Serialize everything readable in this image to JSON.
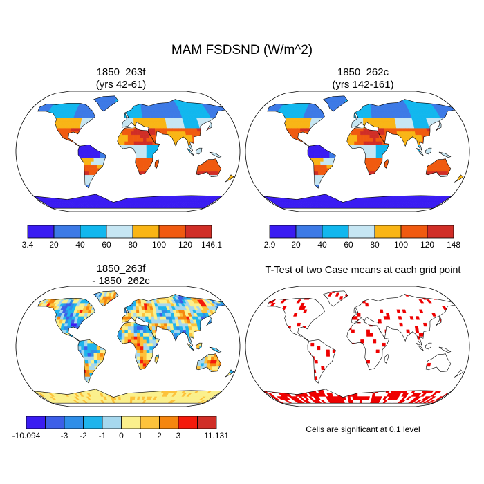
{
  "title": "MAM FSDSND (W/m^2)",
  "panels": {
    "p1": {
      "title_line1": "1850_263f",
      "title_line2": "(yrs 42-61)"
    },
    "p2": {
      "title_line1": "1850_262c",
      "title_line2": "(yrs 142-161)"
    },
    "p3": {
      "title_line1": "1850_263f",
      "title_line2": "- 1850_262c"
    },
    "p4": {
      "title": "T-Test of two Case means at each grid point",
      "note": "Cells are significant at 0.1 level"
    }
  },
  "chart_data": [
    {
      "type": "heatmap",
      "name": "case-a-map",
      "title": "1850_263f (yrs 42-61)",
      "projection": "Robinson",
      "colorbar": {
        "labels": [
          "3.4",
          "20",
          "40",
          "60",
          "80",
          "100",
          "120",
          "146.1"
        ],
        "bounds": [
          3.4,
          20,
          40,
          60,
          80,
          100,
          120,
          146.1
        ],
        "colors": [
          "#3a1cf2",
          "#3d7ae6",
          "#12b7ee",
          "#c6e6f3",
          "#f9b516",
          "#f05a10",
          "#d02e27"
        ]
      }
    },
    {
      "type": "heatmap",
      "name": "case-b-map",
      "title": "1850_262c (yrs 142-161)",
      "projection": "Robinson",
      "colorbar": {
        "labels": [
          "2.9",
          "20",
          "40",
          "60",
          "80",
          "100",
          "120",
          "148"
        ],
        "bounds": [
          2.9,
          20,
          40,
          60,
          80,
          100,
          120,
          148
        ],
        "colors": [
          "#3a1cf2",
          "#3d7ae6",
          "#12b7ee",
          "#c6e6f3",
          "#f9b516",
          "#f05a10",
          "#d02e27"
        ]
      }
    },
    {
      "type": "heatmap",
      "name": "difference-map",
      "title": "1850_263f - 1850_262c",
      "projection": "Robinson",
      "colorbar": {
        "labels": [
          "-10.094",
          "-3",
          "-2",
          "-1",
          "0",
          "1",
          "2",
          "3",
          "11.131"
        ],
        "bounds": [
          -10.094,
          -4,
          -3,
          -2,
          -1,
          0,
          1,
          2,
          3,
          4,
          11.131
        ],
        "colors": [
          "#3a1cf2",
          "#3d5fe8",
          "#2f8ee8",
          "#1fb4ec",
          "#a6d8ee",
          "#fbf08c",
          "#fdc23b",
          "#f5860f",
          "#f41a0c",
          "#d02e27"
        ]
      }
    },
    {
      "type": "heatmap",
      "name": "ttest-map",
      "title": "T-Test of two Case means at each grid point",
      "projection": "Robinson",
      "significance_level": 0.1,
      "significant_color": "#ee0000"
    }
  ]
}
